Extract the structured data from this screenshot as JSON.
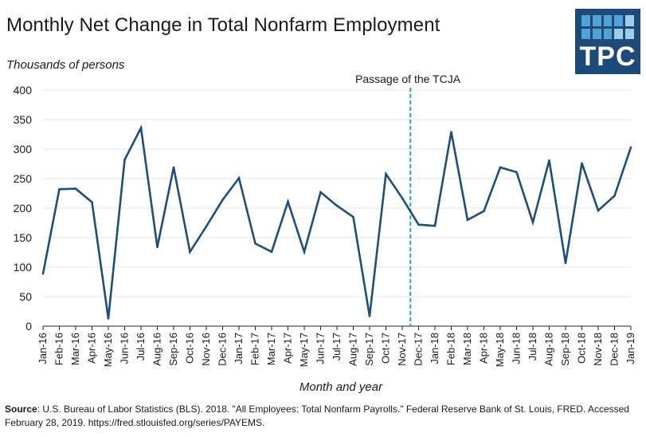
{
  "title": "Monthly Net Change in Total Nonfarm Employment",
  "logo": {
    "text": "TPC"
  },
  "source": {
    "label": "Source",
    "text": ": U.S. Bureau of Labor Statistics (BLS). 2018. \"All Employees: Total Nonfarm Payrolls.\" Federal Reserve Bank of St. Louis, FRED. Accessed February 28, 2019. https://fred.stlouisfed.org/series/PAYEMS."
  },
  "colors": {
    "line": "#1f4e79",
    "annotation": "#2a9fd6",
    "gridline": "#e6e6e6",
    "logo_bg": "#1e4a7a"
  },
  "chart_data": {
    "type": "line",
    "xlabel": "Month and year",
    "ylabel": "Thousands of persons",
    "ylim": [
      0,
      400
    ],
    "yticks": [
      0,
      50,
      100,
      150,
      200,
      250,
      300,
      350,
      400
    ],
    "grid": true,
    "categories": [
      "Jan-16",
      "Feb-16",
      "Mar-16",
      "Apr-16",
      "May-16",
      "Jun-16",
      "Jul-16",
      "Aug-16",
      "Sep-16",
      "Oct-16",
      "Nov-16",
      "Dec-16",
      "Jan-17",
      "Feb-17",
      "Mar-17",
      "Apr-17",
      "May-17",
      "Jun-17",
      "Jul-17",
      "Aug-17",
      "Sep-17",
      "Oct-17",
      "Nov-17",
      "Dec-17",
      "Jan-18",
      "Feb-18",
      "Mar-18",
      "Apr-18",
      "May-18",
      "Jun-18",
      "Jul-18",
      "Aug-18",
      "Sep-18",
      "Oct-18",
      "Nov-18",
      "Dec-18",
      "Jan-19"
    ],
    "values": [
      89,
      232,
      233,
      210,
      13,
      282,
      336,
      134,
      269,
      126,
      169,
      214,
      251,
      140,
      126,
      211,
      126,
      227,
      204,
      185,
      17,
      258,
      217,
      172,
      170,
      329,
      180,
      195,
      269,
      261,
      176,
      281,
      107,
      276,
      196,
      221,
      303
    ],
    "annotation": {
      "label": "Passage of the TCJA",
      "position": "Dec-17"
    }
  }
}
